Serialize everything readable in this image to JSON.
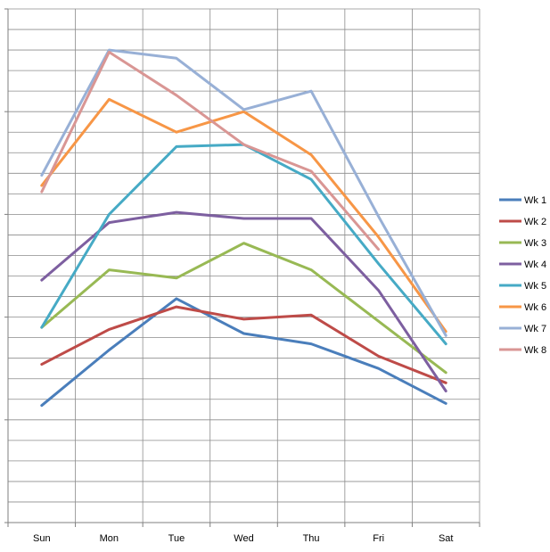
{
  "chart_data": {
    "type": "line",
    "categories": [
      "Sun",
      "Mon",
      "Tue",
      "Wed",
      "Thu",
      "Fri",
      "Sat"
    ],
    "grid": true,
    "legend_position": "right",
    "ylim": [
      0,
      25
    ],
    "series": [
      {
        "name": "Wk 1",
        "color": "#4A7EBB",
        "values": [
          5.7,
          8.4,
          10.9,
          9.2,
          8.7,
          7.5,
          5.8
        ]
      },
      {
        "name": "Wk 2",
        "color": "#BE4B48",
        "values": [
          7.7,
          9.4,
          10.5,
          9.9,
          10.1,
          8.1,
          6.8
        ]
      },
      {
        "name": "Wk 3",
        "color": "#98B954",
        "values": [
          9.5,
          12.3,
          11.9,
          13.6,
          12.3,
          9.8,
          7.3
        ]
      },
      {
        "name": "Wk 4",
        "color": "#7D5FA0",
        "values": [
          11.8,
          14.6,
          15.1,
          14.8,
          14.8,
          11.3,
          6.4
        ]
      },
      {
        "name": "Wk 5",
        "color": "#46AAC5",
        "values": [
          9.5,
          15.0,
          18.3,
          18.4,
          16.7,
          12.6,
          8.7
        ]
      },
      {
        "name": "Wk 6",
        "color": "#F79646",
        "values": [
          16.4,
          20.6,
          19.0,
          20.0,
          17.9,
          13.9,
          9.3
        ]
      },
      {
        "name": "Wk 7",
        "color": "#98B0D6",
        "values": [
          16.9,
          23.0,
          22.6,
          20.1,
          21.0,
          14.9,
          9.1
        ]
      },
      {
        "name": "Wk 8",
        "color": "#D99694",
        "values": [
          16.1,
          22.9,
          20.8,
          18.4,
          17.1,
          13.3,
          null
        ]
      }
    ]
  }
}
